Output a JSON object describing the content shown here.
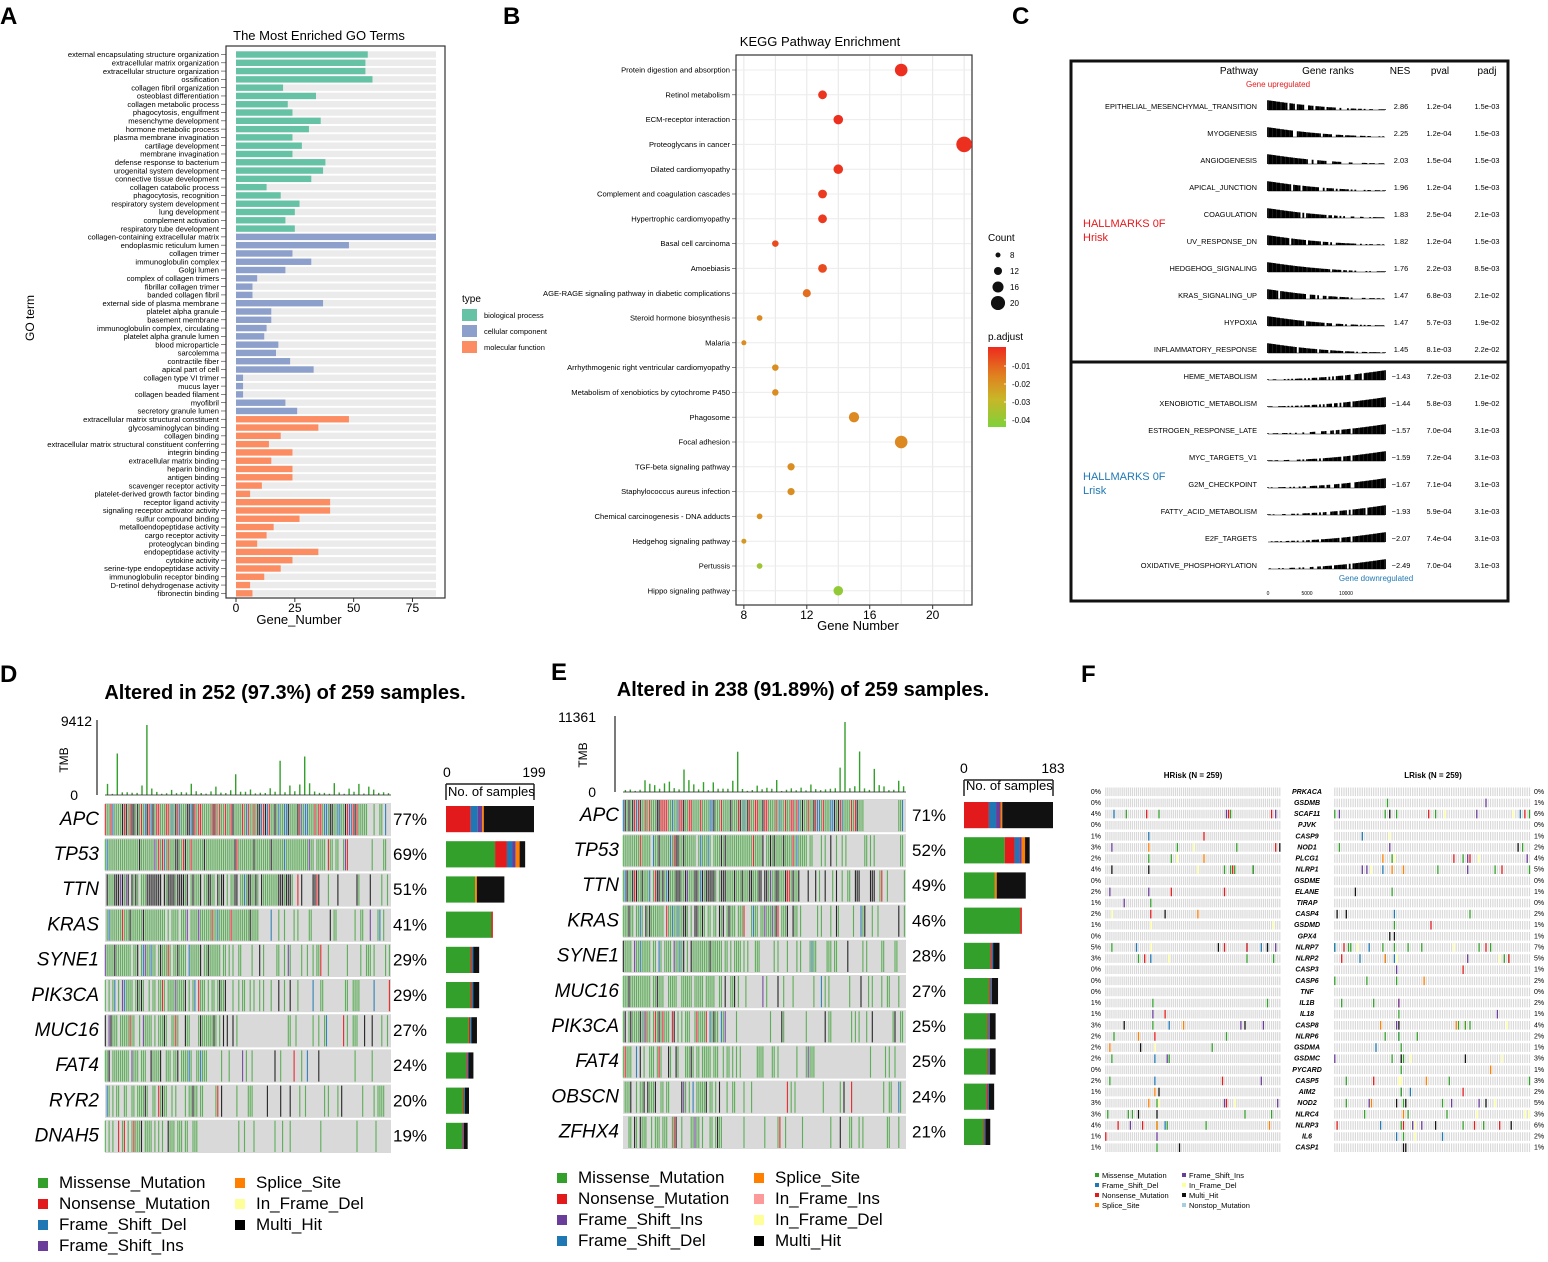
{
  "panel_letters": [
    "A",
    "B",
    "C",
    "D",
    "E",
    "F"
  ],
  "colors": {
    "bp": "#66c2a5",
    "cc": "#8da0cb",
    "mf": "#fc8d62",
    "missense": "#33a02c",
    "nonsense": "#e31a1c",
    "fsdel": "#1f78b4",
    "fsins": "#6a3d9a",
    "splice": "#ff7f00",
    "inframedel": "#ffff99",
    "inframeins": "#fb9a99",
    "multihit": "#000000",
    "grid": "#d9d9d9",
    "up": "#e41a1c",
    "down": "#1f78b4"
  },
  "chart_data": [
    {
      "id": "A",
      "type": "bar",
      "orientation": "horizontal",
      "title": "The Most Enriched GO Terms",
      "xlabel": "Gene_Number",
      "ylabel": "GO term",
      "xlim": [
        0,
        85
      ],
      "xticks": [
        0,
        25,
        50,
        75
      ],
      "legend_title": "type",
      "legend": [
        "biological process",
        "cellular component",
        "molecular function"
      ],
      "categories": [
        "external encapsulating structure organization",
        "extracellular matrix organization",
        "extracellular structure organization",
        "ossification",
        "collagen fibril organization",
        "osteoblast differentiation",
        "collagen metabolic process",
        "phagocytosis, engulfment",
        "mesenchyme development",
        "hormone metabolic process",
        "plasma membrane invagination",
        "cartilage development",
        "membrane invagination",
        "defense response to bacterium",
        "urogenital system development",
        "connective tissue development",
        "collagen catabolic process",
        "phagocytosis, recognition",
        "respiratory system development",
        "lung development",
        "complement activation",
        "respiratory tube development",
        "collagen-containing extracellular matrix",
        "endoplasmic reticulum lumen",
        "collagen trimer",
        "immunoglobulin complex",
        "Golgi lumen",
        "complex of collagen trimers",
        "fibrillar collagen trimer",
        "banded collagen fibril",
        "external side of plasma membrane",
        "platelet alpha granule",
        "basement membrane",
        "immunoglobulin complex, circulating",
        "platelet alpha granule lumen",
        "blood microparticle",
        "sarcolemma",
        "contractile fiber",
        "apical part of cell",
        "collagen type VI trimer",
        "mucus layer",
        "collagen beaded filament",
        "myofibril",
        "secretory granule lumen",
        "extracellular matrix structural constituent",
        "glycosaminoglycan binding",
        "collagen binding",
        "extracellular matrix structural constituent conferring",
        "integrin binding",
        "extracellular matrix binding",
        "heparin binding",
        "antigen binding",
        "scavenger receptor activity",
        "platelet-derived growth factor binding",
        "receptor ligand activity",
        "signaling receptor activator activity",
        "sulfur compound binding",
        "metalloendopeptidase activity",
        "cargo receptor activity",
        "proteoglycan binding",
        "endopeptidase activity",
        "cytokine activity",
        "serine-type endopeptidase activity",
        "immunoglobulin receptor binding",
        "D-retinol dehydrogenase activity",
        "fibronectin binding"
      ],
      "values": [
        56,
        55,
        55,
        58,
        20,
        34,
        22,
        24,
        36,
        31,
        24,
        28,
        24,
        38,
        37,
        32,
        13,
        19,
        27,
        25,
        21,
        25,
        85,
        48,
        24,
        32,
        21,
        9,
        7,
        7,
        37,
        15,
        15,
        13,
        12,
        18,
        17,
        23,
        33,
        3,
        3,
        3,
        21,
        26,
        48,
        35,
        19,
        14,
        24,
        15,
        24,
        24,
        11,
        6,
        40,
        40,
        27,
        16,
        13,
        9,
        35,
        24,
        19,
        12,
        6,
        7
      ],
      "group_index": [
        0,
        0,
        0,
        0,
        0,
        0,
        0,
        0,
        0,
        0,
        0,
        0,
        0,
        0,
        0,
        0,
        0,
        0,
        0,
        0,
        0,
        0,
        1,
        1,
        1,
        1,
        1,
        1,
        1,
        1,
        1,
        1,
        1,
        1,
        1,
        1,
        1,
        1,
        1,
        1,
        1,
        1,
        1,
        1,
        2,
        2,
        2,
        2,
        2,
        2,
        2,
        2,
        2,
        2,
        2,
        2,
        2,
        2,
        2,
        2,
        2,
        2,
        2,
        2,
        2,
        2
      ]
    },
    {
      "id": "B",
      "type": "scatter",
      "title": "KEGG Pathway Enrichment",
      "xlabel": "Gene Number",
      "xlim": [
        7.5,
        22.5
      ],
      "xticks": [
        8,
        12,
        16,
        20
      ],
      "size_legend_title": "Count",
      "size_legend": [
        8,
        12,
        16,
        20
      ],
      "color_legend_title": "p.adjust",
      "color_legend": [
        -0.01,
        -0.02,
        -0.03,
        -0.04
      ],
      "categories": [
        "Protein digestion and absorption",
        "Retinol metabolism",
        "ECM-receptor interaction",
        "Proteoglycans in cancer",
        "Dilated cardiomyopathy",
        "Complement and coagulation cascades",
        "Hypertrophic cardiomyopathy",
        "Basal cell carcinoma",
        "Amoebiasis",
        "AGE-RAGE signaling pathway in diabetic complications",
        "Steroid hormone biosynthesis",
        "Malaria",
        "Arrhythmogenic right ventricular cardiomyopathy",
        "Metabolism of xenobiotics by cytochrome P450",
        "Phagosome",
        "Focal adhesion",
        "TGF-beta signaling pathway",
        "Staphylococcus aureus infection",
        "Chemical carcinogenesis - DNA adducts",
        "Hedgehog signaling pathway",
        "Pertussis",
        "Hippo signaling pathway"
      ],
      "x": [
        18,
        13,
        14,
        22,
        14,
        13,
        13,
        10,
        13,
        12,
        9,
        8,
        10,
        10,
        15,
        18,
        11,
        11,
        9,
        8,
        9,
        14
      ],
      "p_adjust": [
        -0.001,
        -0.002,
        -0.001,
        -0.001,
        -0.002,
        -0.003,
        -0.003,
        -0.006,
        -0.006,
        -0.012,
        -0.018,
        -0.019,
        -0.019,
        -0.019,
        -0.018,
        -0.018,
        -0.019,
        -0.019,
        -0.02,
        -0.022,
        -0.038,
        -0.041
      ]
    },
    {
      "id": "C",
      "type": "table",
      "headers": [
        "Pathway",
        "Gene ranks",
        "NES",
        "pval",
        "padj"
      ],
      "gene_up_label": "Gene upregulated",
      "gene_down_label": "Gene downregulated",
      "group_up_label": [
        "HALLMARKS 0F",
        "Hrisk"
      ],
      "group_down_label": [
        "HALLMARKS 0F",
        "Lrisk"
      ],
      "axis_ticks": [
        "0",
        "5000",
        "10000"
      ],
      "rows": [
        [
          "EPITHELIAL_MESENCHYMAL_TRANSITION",
          "2.86",
          "1.2e-04",
          "1.5e-03"
        ],
        [
          "MYOGENESIS",
          "2.25",
          "1.2e-04",
          "1.5e-03"
        ],
        [
          "ANGIOGENESIS",
          "2.03",
          "1.5e-04",
          "1.5e-03"
        ],
        [
          "APICAL_JUNCTION",
          "1.96",
          "1.2e-04",
          "1.5e-03"
        ],
        [
          "COAGULATION",
          "1.83",
          "2.5e-04",
          "2.1e-03"
        ],
        [
          "UV_RESPONSE_DN",
          "1.82",
          "1.2e-04",
          "1.5e-03"
        ],
        [
          "HEDGEHOG_SIGNALING",
          "1.76",
          "2.2e-03",
          "8.5e-03"
        ],
        [
          "KRAS_SIGNALING_UP",
          "1.47",
          "6.8e-03",
          "2.1e-02"
        ],
        [
          "HYPOXIA",
          "1.47",
          "5.7e-03",
          "1.9e-02"
        ],
        [
          "INFLAMMATORY_RESPONSE",
          "1.45",
          "8.1e-03",
          "2.2e-02"
        ],
        [
          "HEME_METABOLISM",
          "−1.43",
          "7.2e-03",
          "2.1e-02"
        ],
        [
          "XENOBIOTIC_METABOLISM",
          "−1.44",
          "5.8e-03",
          "1.9e-02"
        ],
        [
          "ESTROGEN_RESPONSE_LATE",
          "−1.57",
          "7.0e-04",
          "3.1e-03"
        ],
        [
          "MYC_TARGETS_V1",
          "−1.59",
          "7.2e-04",
          "3.1e-03"
        ],
        [
          "G2M_CHECKPOINT",
          "−1.67",
          "7.1e-04",
          "3.1e-03"
        ],
        [
          "FATTY_ACID_METABOLISM",
          "−1.93",
          "5.9e-04",
          "3.1e-03"
        ],
        [
          "E2F_TARGETS",
          "−2.07",
          "7.4e-04",
          "3.1e-03"
        ],
        [
          "OXIDATIVE_PHOSPHORYLATION",
          "−2.49",
          "7.0e-04",
          "3.1e-03"
        ]
      ]
    },
    {
      "id": "D",
      "type": "heatmap",
      "title": "Altered in 252 (97.3%) of 259 samples.",
      "tmb_label": "TMB",
      "tmb_max": "9412",
      "tmb_min": "0",
      "bar_axis_min": "0",
      "bar_axis_max": "199",
      "bar_axis_label": "No. of samples",
      "genes": [
        "APC",
        "TP53",
        "TTN",
        "KRAS",
        "SYNE1",
        "PIK3CA",
        "MUC16",
        "FAT4",
        "RYR2",
        "DNAH5"
      ],
      "percents": [
        "77%",
        "69%",
        "51%",
        "41%",
        "29%",
        "29%",
        "27%",
        "24%",
        "20%",
        "19%"
      ],
      "sample_counts": [
        199,
        179,
        132,
        106,
        75,
        75,
        70,
        62,
        52,
        49
      ],
      "legend": [
        "Missense_Mutation",
        "Nonsense_Mutation",
        "Frame_Shift_Del",
        "Frame_Shift_Ins",
        "Splice_Site",
        "In_Frame_Del",
        "Multi_Hit"
      ]
    },
    {
      "id": "E",
      "type": "heatmap",
      "title": "Altered in 238 (91.89%) of 259 samples.",
      "tmb_label": "TMB",
      "tmb_max": "11361",
      "tmb_min": "0",
      "bar_axis_min": "0",
      "bar_axis_max": "183",
      "bar_axis_label": "No. of samples",
      "genes": [
        "APC",
        "TP53",
        "TTN",
        "KRAS",
        "SYNE1",
        "MUC16",
        "PIK3CA",
        "FAT4",
        "OBSCN",
        "ZFHX4"
      ],
      "percents": [
        "71%",
        "52%",
        "49%",
        "46%",
        "28%",
        "27%",
        "25%",
        "25%",
        "24%",
        "21%"
      ],
      "sample_counts": [
        183,
        135,
        127,
        119,
        73,
        70,
        65,
        65,
        62,
        54
      ],
      "legend": [
        "Missense_Mutation",
        "Nonsense_Mutation",
        "Frame_Shift_Ins",
        "Frame_Shift_Del",
        "Splice_Site",
        "In_Frame_Ins",
        "In_Frame_Del",
        "Multi_Hit"
      ]
    },
    {
      "id": "F",
      "type": "heatmap",
      "left_title": "HRisk (N = 259)",
      "right_title": "LRisk (N = 259)",
      "genes": [
        "PRKACA",
        "GSDMB",
        "SCAF11",
        "PJVK",
        "CASP9",
        "NOD1",
        "PLCG1",
        "NLRP1",
        "GSDME",
        "ELANE",
        "TIRAP",
        "CASP4",
        "GSDMD",
        "GPX4",
        "NLRP7",
        "NLRP2",
        "CASP3",
        "CASP6",
        "TNF",
        "IL1B",
        "IL18",
        "CASP8",
        "NLRP6",
        "GSDMA",
        "GSDMC",
        "PYCARD",
        "CASP5",
        "AIM2",
        "NOD2",
        "NLRC4",
        "NLRP3",
        "IL6",
        "CASP1"
      ],
      "left_percents": [
        "0%",
        "0%",
        "4%",
        "0%",
        "1%",
        "3%",
        "2%",
        "4%",
        "0%",
        "2%",
        "1%",
        "2%",
        "1%",
        "0%",
        "5%",
        "3%",
        "0%",
        "0%",
        "0%",
        "1%",
        "1%",
        "3%",
        "2%",
        "2%",
        "2%",
        "0%",
        "2%",
        "1%",
        "3%",
        "3%",
        "4%",
        "1%",
        "1%"
      ],
      "right_percents": [
        "0%",
        "1%",
        "6%",
        "0%",
        "1%",
        "2%",
        "4%",
        "5%",
        "0%",
        "1%",
        "0%",
        "2%",
        "1%",
        "1%",
        "7%",
        "5%",
        "1%",
        "2%",
        "0%",
        "2%",
        "1%",
        "4%",
        "2%",
        "1%",
        "3%",
        "1%",
        "3%",
        "2%",
        "5%",
        "3%",
        "6%",
        "2%",
        "1%"
      ],
      "legend": [
        "Missense_Mutation",
        "Frame_Shift_Ins",
        "Frame_Shift_Del",
        "In_Frame_Del",
        "Nonsense_Mutation",
        "Multi_Hit",
        "Splice_Site",
        "Nonstop_Mutation"
      ]
    }
  ]
}
